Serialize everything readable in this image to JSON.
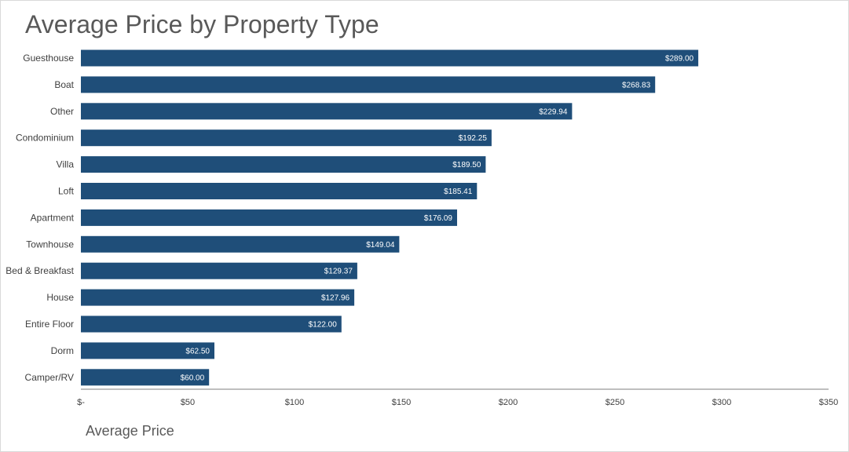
{
  "chart_data": {
    "type": "bar",
    "orientation": "horizontal",
    "title": "Average Price by Property Type",
    "xlabel": "Average Price",
    "ylabel": "",
    "categories": [
      "Guesthouse",
      "Boat",
      "Other",
      "Condominium",
      "Villa",
      "Loft",
      "Apartment",
      "Townhouse",
      "Bed & Breakfast",
      "House",
      "Entire Floor",
      "Dorm",
      "Camper/RV"
    ],
    "values": [
      289.0,
      268.83,
      229.94,
      192.25,
      189.5,
      185.41,
      176.09,
      149.04,
      129.37,
      127.96,
      122.0,
      62.5,
      60.0
    ],
    "data_labels": [
      "$289.00",
      "$268.83",
      "$229.94",
      "$192.25",
      "$189.50",
      "$185.41",
      "$176.09",
      "$149.04",
      "$129.37",
      "$127.96",
      "$122.00",
      "$62.50",
      "$60.00"
    ],
    "xlim": [
      0,
      350
    ],
    "x_ticks": [
      0,
      50,
      100,
      150,
      200,
      250,
      300,
      350
    ],
    "x_tick_labels": [
      "$-",
      "$50",
      "$100",
      "$150",
      "$200",
      "$250",
      "$300",
      "$350"
    ],
    "grid": false,
    "legend": "none",
    "colors": {
      "bar": "#1f4e79",
      "axis": "#7f7f7f",
      "text": "#404040",
      "title": "#595959"
    }
  }
}
